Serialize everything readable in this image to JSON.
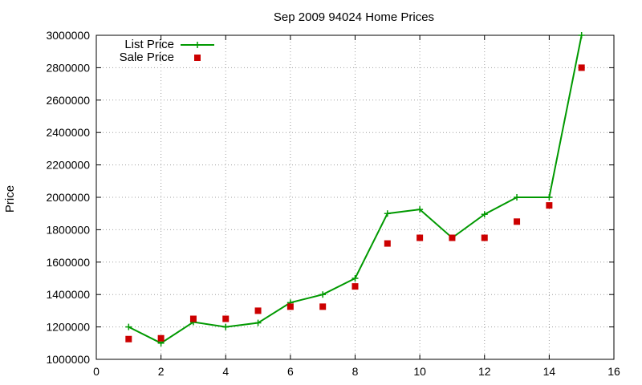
{
  "chart_data": {
    "type": "line",
    "title": "Sep 2009 94024 Home Prices",
    "xlabel": "",
    "ylabel": "Price",
    "xlim": [
      0,
      16
    ],
    "ylim": [
      1000000,
      3000000
    ],
    "x_ticks": [
      "0",
      "2",
      "4",
      "6",
      "8",
      "10",
      "12",
      "14",
      "16"
    ],
    "y_ticks": [
      "1000000",
      "1200000",
      "1400000",
      "1600000",
      "1800000",
      "2000000",
      "2200000",
      "2400000",
      "2600000",
      "2800000",
      "3000000"
    ],
    "grid": true,
    "legend_position": "top-left",
    "series": [
      {
        "name": "List Price",
        "style": "line+cross",
        "color": "#009900",
        "x": [
          1,
          2,
          3,
          4,
          5,
          6,
          7,
          8,
          9,
          10,
          11,
          12,
          13,
          14,
          15
        ],
        "values": [
          1200000,
          1100000,
          1230000,
          1200000,
          1225000,
          1350000,
          1400000,
          1500000,
          1900000,
          1925000,
          1750000,
          1895000,
          2000000,
          2000000,
          3000000
        ]
      },
      {
        "name": "Sale Price",
        "style": "square",
        "color": "#cc0000",
        "x": [
          1,
          2,
          3,
          4,
          5,
          6,
          7,
          8,
          9,
          10,
          11,
          12,
          13,
          14,
          15
        ],
        "values": [
          1125000,
          1130000,
          1250000,
          1250000,
          1300000,
          1325000,
          1325000,
          1450000,
          1715000,
          1750000,
          1750000,
          1750000,
          1850000,
          1950000,
          2800000
        ]
      }
    ]
  }
}
